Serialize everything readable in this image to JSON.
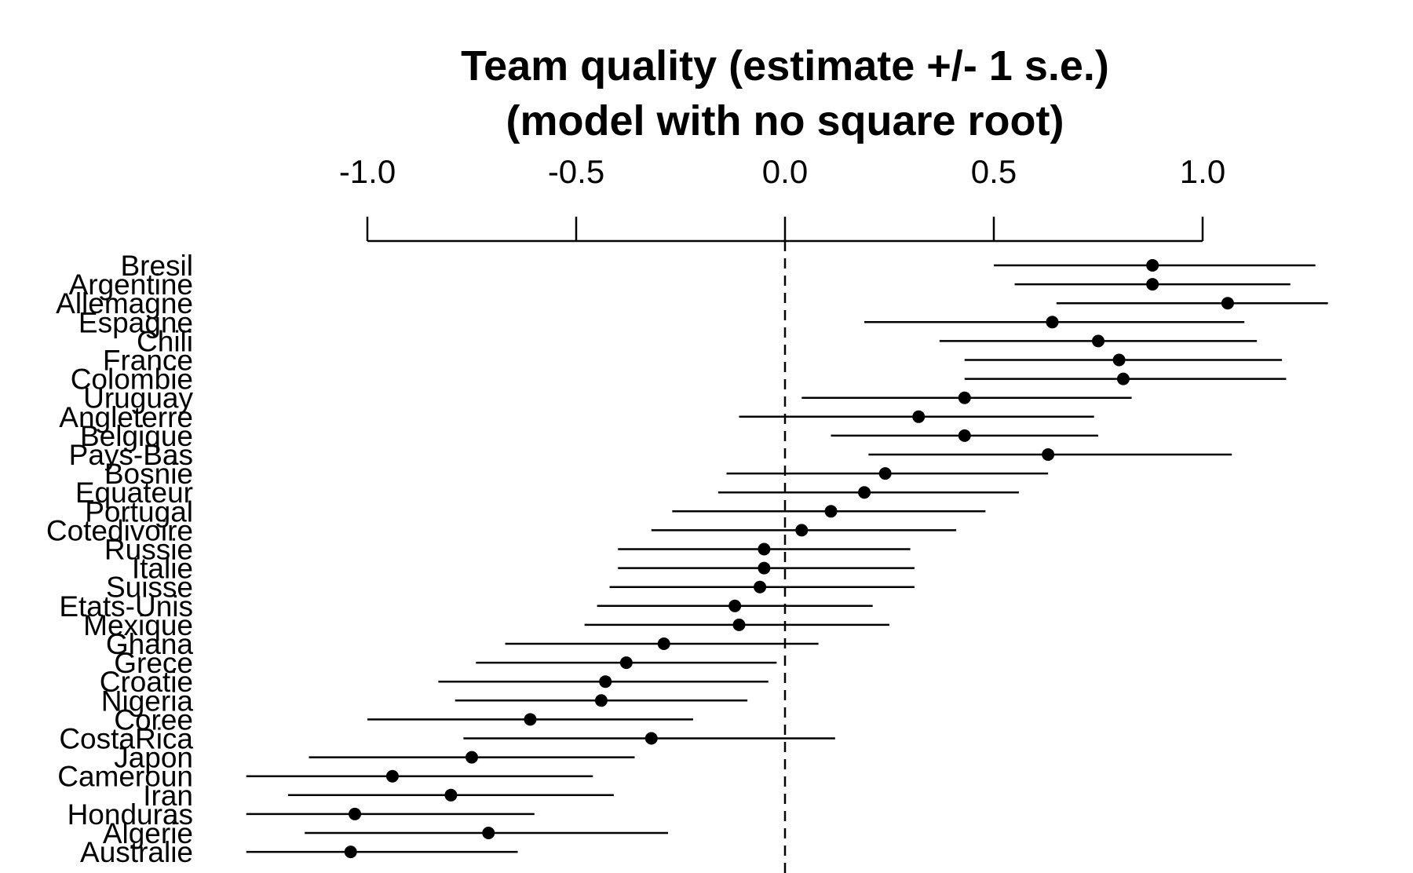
{
  "chart_data": {
    "type": "scatter",
    "title_lines": [
      "Team quality (estimate +/- 1 s.e.)",
      "(model with no square root)"
    ],
    "xlabel": "",
    "ylabel": "",
    "xlim": [
      -1.0,
      1.0
    ],
    "x_ticks": [
      "-1.0",
      "-0.5",
      "0.0",
      "0.5",
      "1.0"
    ],
    "reference_line": 0.0,
    "grid": false,
    "teams": [
      {
        "name": "Bresil",
        "estimate": 0.88,
        "lower": 0.5,
        "upper": 1.27
      },
      {
        "name": "Argentine",
        "estimate": 0.88,
        "lower": 0.55,
        "upper": 1.21
      },
      {
        "name": "Allemagne",
        "estimate": 1.06,
        "lower": 0.65,
        "upper": 1.3
      },
      {
        "name": "Espagne",
        "estimate": 0.64,
        "lower": 0.19,
        "upper": 1.1
      },
      {
        "name": "Chili",
        "estimate": 0.75,
        "lower": 0.37,
        "upper": 1.13
      },
      {
        "name": "France",
        "estimate": 0.8,
        "lower": 0.43,
        "upper": 1.19
      },
      {
        "name": "Colombie",
        "estimate": 0.81,
        "lower": 0.43,
        "upper": 1.2
      },
      {
        "name": "Uruguay",
        "estimate": 0.43,
        "lower": 0.04,
        "upper": 0.83
      },
      {
        "name": "Angleterre",
        "estimate": 0.32,
        "lower": -0.11,
        "upper": 0.74
      },
      {
        "name": "Belgique",
        "estimate": 0.43,
        "lower": 0.11,
        "upper": 0.75
      },
      {
        "name": "Pays-Bas",
        "estimate": 0.63,
        "lower": 0.2,
        "upper": 1.07
      },
      {
        "name": "Bosnie",
        "estimate": 0.24,
        "lower": -0.14,
        "upper": 0.63
      },
      {
        "name": "Equateur",
        "estimate": 0.19,
        "lower": -0.16,
        "upper": 0.56
      },
      {
        "name": "Portugal",
        "estimate": 0.11,
        "lower": -0.27,
        "upper": 0.48
      },
      {
        "name": "Cotedivoire",
        "estimate": 0.04,
        "lower": -0.32,
        "upper": 0.41
      },
      {
        "name": "Russie",
        "estimate": -0.05,
        "lower": -0.4,
        "upper": 0.3
      },
      {
        "name": "Italie",
        "estimate": -0.05,
        "lower": -0.4,
        "upper": 0.31
      },
      {
        "name": "Suisse",
        "estimate": -0.06,
        "lower": -0.42,
        "upper": 0.31
      },
      {
        "name": "Etats-Unis",
        "estimate": -0.12,
        "lower": -0.45,
        "upper": 0.21
      },
      {
        "name": "Mexique",
        "estimate": -0.11,
        "lower": -0.48,
        "upper": 0.25
      },
      {
        "name": "Ghana",
        "estimate": -0.29,
        "lower": -0.67,
        "upper": 0.08
      },
      {
        "name": "Grece",
        "estimate": -0.38,
        "lower": -0.74,
        "upper": -0.02
      },
      {
        "name": "Croatie",
        "estimate": -0.43,
        "lower": -0.83,
        "upper": -0.04
      },
      {
        "name": "Nigeria",
        "estimate": -0.44,
        "lower": -0.79,
        "upper": -0.09
      },
      {
        "name": "Coree",
        "estimate": -0.61,
        "lower": -1.0,
        "upper": -0.22
      },
      {
        "name": "CostaRica",
        "estimate": -0.32,
        "lower": -0.77,
        "upper": 0.12
      },
      {
        "name": "Japon",
        "estimate": -0.75,
        "lower": -1.14,
        "upper": -0.36
      },
      {
        "name": "Cameroun",
        "estimate": -0.94,
        "lower": -1.29,
        "upper": -0.46
      },
      {
        "name": "Iran",
        "estimate": -0.8,
        "lower": -1.19,
        "upper": -0.41
      },
      {
        "name": "Honduras",
        "estimate": -1.03,
        "lower": -1.29,
        "upper": -0.6
      },
      {
        "name": "Algerie",
        "estimate": -0.71,
        "lower": -1.15,
        "upper": -0.28
      },
      {
        "name": "Australie",
        "estimate": -1.04,
        "lower": -1.29,
        "upper": -0.64
      }
    ]
  }
}
